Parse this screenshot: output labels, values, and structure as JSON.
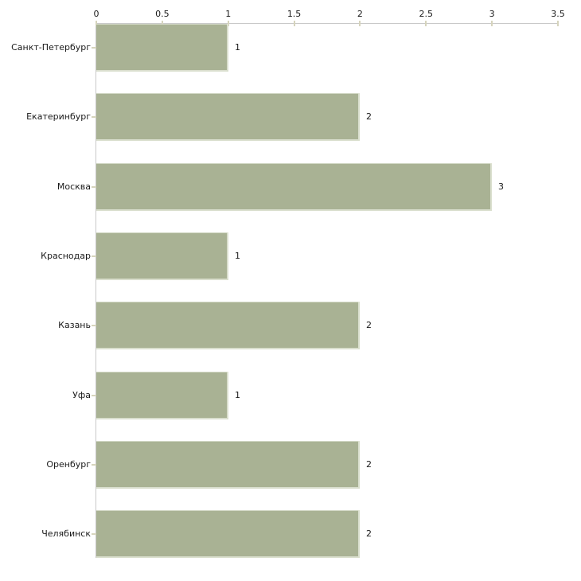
{
  "chart_data": {
    "type": "bar",
    "orientation": "horizontal",
    "title": "",
    "xlabel": "",
    "ylabel": "",
    "categories": [
      "Санкт-Петербург",
      "Екатеринбург",
      "Москва",
      "Краснодар",
      "Казань",
      "Уфа",
      "Оренбург",
      "Челябинск"
    ],
    "values": [
      1,
      2,
      3,
      1,
      2,
      1,
      2,
      2
    ],
    "value_labels": [
      "1",
      "2",
      "3",
      "1",
      "2",
      "1",
      "2",
      "2"
    ],
    "x_axis": {
      "position": "top",
      "min": 0,
      "max": 3.5,
      "ticks": [
        0,
        0.5,
        1,
        1.5,
        2,
        2.5,
        3,
        3.5
      ],
      "tick_labels": [
        "0",
        "0.5",
        "1",
        "1.5",
        "2",
        "2.5",
        "3",
        "3.5"
      ]
    },
    "grid": false,
    "legend": false,
    "colors": {
      "bar": "#a9b294",
      "bar_edge": "#dfe3d4",
      "axis_line": "#c9c9c9",
      "tick_mark": "#d6d4bd",
      "text": "#1a1a1a",
      "background": "#ffffff"
    }
  }
}
